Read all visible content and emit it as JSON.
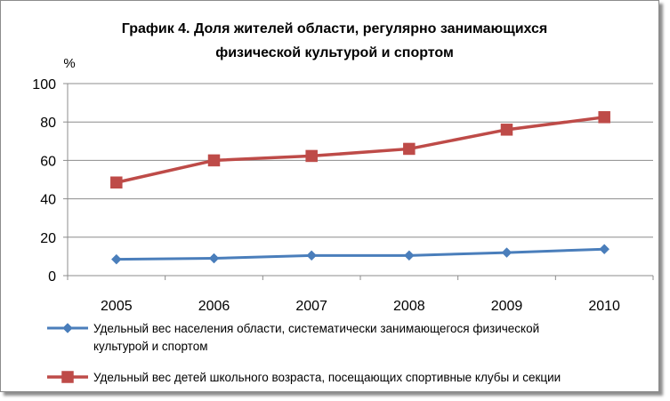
{
  "chart_data": {
    "type": "line",
    "title_lines": [
      "График 4. Доля жителей области, регулярно занимающихся",
      "физической культурой и спортом"
    ],
    "y_unit": "%",
    "categories": [
      "2005",
      "2006",
      "2007",
      "2008",
      "2009",
      "2010"
    ],
    "ylim": [
      0,
      100
    ],
    "yticks": [
      "0",
      "20",
      "40",
      "60",
      "80",
      "100"
    ],
    "grid": true,
    "legend_position": "bottom",
    "series": [
      {
        "name_lines": [
          "Удельный вес населения области, систематически занимающегося физической",
          "культурой и спортом"
        ],
        "marker": "diamond",
        "color": "#4a7ebb",
        "values": [
          8.5,
          9.0,
          10.5,
          10.5,
          12.0,
          13.8
        ]
      },
      {
        "name_lines": [
          "Удельный вес детей школьного возраста, посещающих спортивные клубы и секции"
        ],
        "marker": "square",
        "color": "#be4b48",
        "values": [
          48.5,
          60.0,
          62.3,
          66.0,
          76.0,
          82.5
        ]
      }
    ]
  }
}
